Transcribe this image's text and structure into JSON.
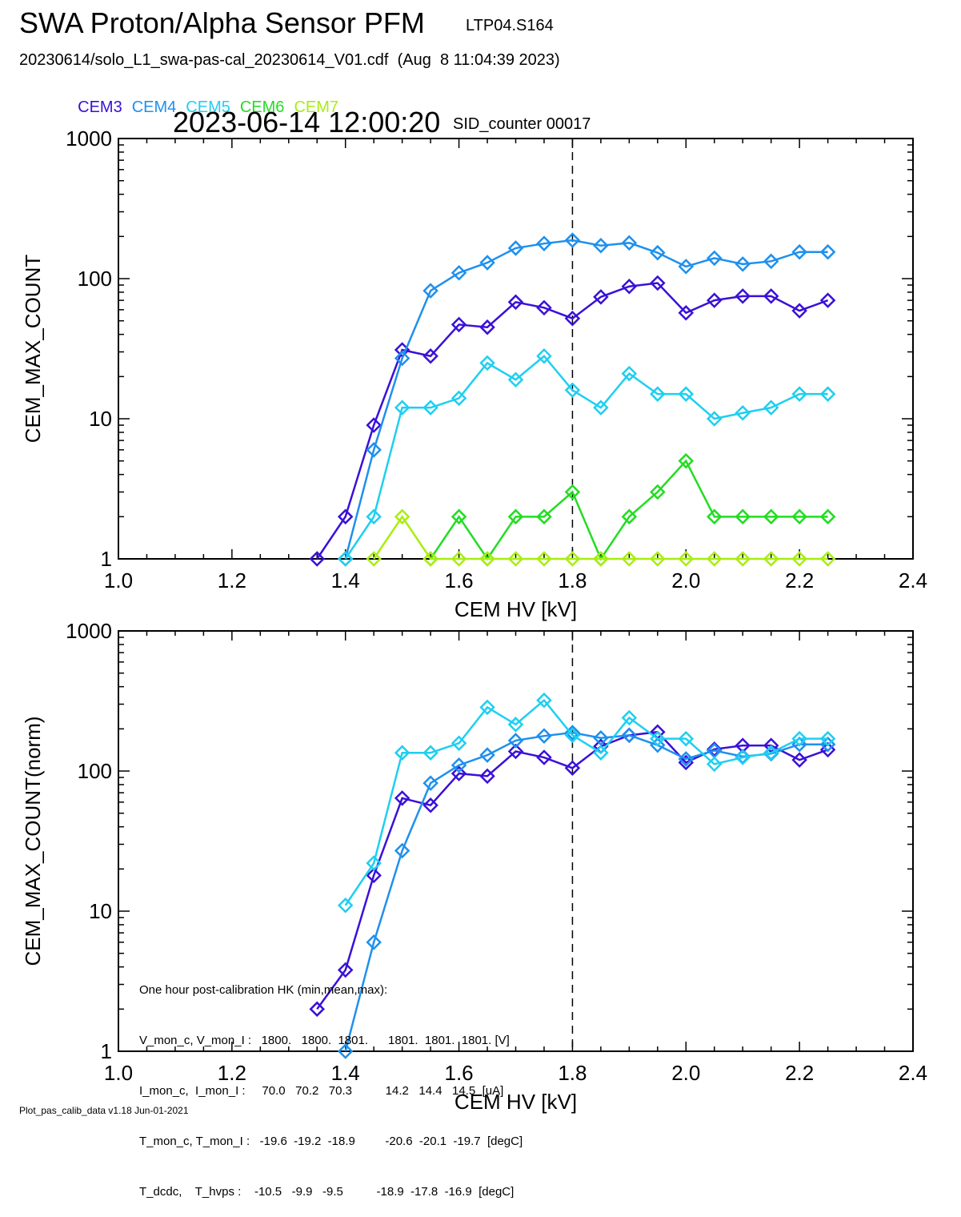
{
  "header": {
    "title": "SWA Proton/Alpha Sensor PFM",
    "subtitle": "LTP04.S164",
    "fileline": "20230614/solo_L1_swa-pas-cal_20230614_V01.cdf  (Aug  8 11:04:39 2023)",
    "timestamp": "2023-06-14 12:00:20",
    "sid": "SID_counter 00017"
  },
  "legend": [
    {
      "label": "CEM3",
      "color": "#3a10d8"
    },
    {
      "label": "CEM4",
      "color": "#1e90ee"
    },
    {
      "label": "CEM5",
      "color": "#1ecff0"
    },
    {
      "label": "CEM6",
      "color": "#22dd22"
    },
    {
      "label": "CEM7",
      "color": "#a8ee10"
    }
  ],
  "hk": {
    "title": "One hour post-calibration HK (min,mean,max):",
    "rows": [
      "V_mon_c, V_mon_I :   1800.   1800.  1801.      1801.  1801.  1801. [V]",
      "I_mon_c,  I_mon_I :     70.0   70.2   70.3          14.2   14.4   14.5  [uA]",
      "T_mon_c, T_mon_I :   -19.6  -19.2  -18.9         -20.6  -20.1  -19.7  [degC]",
      "T_dcdc,    T_hvps :    -10.5   -9.9   -9.5          -18.9  -17.8  -16.9  [degC]"
    ]
  },
  "footer": "Plot_pas_calib_data v1.18 Jun-01-2021",
  "chart_data": [
    {
      "type": "line",
      "title": "",
      "xlabel": "CEM HV [kV]",
      "ylabel": "CEM_MAX_COUNT",
      "xlim": [
        1.0,
        2.4
      ],
      "ylim": [
        1,
        1000
      ],
      "yscale": "log",
      "x_ticks": [
        "1.0",
        "1.2",
        "1.4",
        "1.6",
        "1.8",
        "2.0",
        "2.2",
        "2.4"
      ],
      "y_ticks": [
        "1",
        "10",
        "100",
        "1000"
      ],
      "vline_x": 1.8,
      "series": [
        {
          "name": "CEM3",
          "color": "#3a10d8",
          "points": [
            [
              1.35,
              1
            ],
            [
              1.4,
              2
            ],
            [
              1.45,
              9
            ],
            [
              1.5,
              31
            ],
            [
              1.55,
              28
            ],
            [
              1.6,
              47
            ],
            [
              1.65,
              45
            ],
            [
              1.7,
              68
            ],
            [
              1.75,
              62
            ],
            [
              1.8,
              52
            ],
            [
              1.85,
              74
            ],
            [
              1.9,
              88
            ],
            [
              1.95,
              93
            ],
            [
              2.0,
              57
            ],
            [
              2.05,
              70
            ],
            [
              2.1,
              75
            ],
            [
              2.15,
              75
            ],
            [
              2.2,
              59
            ],
            [
              2.25,
              70
            ]
          ]
        },
        {
          "name": "CEM4",
          "color": "#1e90ee",
          "points": [
            [
              1.4,
              1
            ],
            [
              1.45,
              6
            ],
            [
              1.5,
              27
            ],
            [
              1.55,
              82
            ],
            [
              1.6,
              110
            ],
            [
              1.65,
              130
            ],
            [
              1.7,
              165
            ],
            [
              1.75,
              178
            ],
            [
              1.8,
              188
            ],
            [
              1.85,
              172
            ],
            [
              1.9,
              180
            ],
            [
              1.95,
              153
            ],
            [
              2.0,
              122
            ],
            [
              2.05,
              140
            ],
            [
              2.1,
              127
            ],
            [
              2.15,
              133
            ],
            [
              2.2,
              155
            ],
            [
              2.25,
              155
            ]
          ]
        },
        {
          "name": "CEM5",
          "color": "#1ecff0",
          "points": [
            [
              1.4,
              1
            ],
            [
              1.45,
              2
            ],
            [
              1.5,
              12
            ],
            [
              1.55,
              12
            ],
            [
              1.6,
              14
            ],
            [
              1.65,
              25
            ],
            [
              1.7,
              19
            ],
            [
              1.75,
              28
            ],
            [
              1.8,
              16
            ],
            [
              1.85,
              12
            ],
            [
              1.9,
              21
            ],
            [
              1.95,
              15
            ],
            [
              2.0,
              15
            ],
            [
              2.05,
              10
            ],
            [
              2.1,
              11
            ],
            [
              2.15,
              12
            ],
            [
              2.2,
              15
            ],
            [
              2.25,
              15
            ]
          ]
        },
        {
          "name": "CEM6",
          "color": "#22dd22",
          "points": [
            [
              1.55,
              1
            ],
            [
              1.6,
              2
            ],
            [
              1.65,
              1
            ],
            [
              1.7,
              2
            ],
            [
              1.75,
              2
            ],
            [
              1.8,
              3
            ],
            [
              1.85,
              1
            ],
            [
              1.9,
              2
            ],
            [
              1.95,
              3
            ],
            [
              2.0,
              5
            ],
            [
              2.05,
              2
            ],
            [
              2.1,
              2
            ],
            [
              2.15,
              2
            ],
            [
              2.2,
              2
            ],
            [
              2.25,
              2
            ]
          ]
        },
        {
          "name": "CEM7",
          "color": "#a8ee10",
          "points": [
            [
              1.45,
              1
            ],
            [
              1.5,
              2
            ],
            [
              1.55,
              1
            ],
            [
              1.6,
              1
            ],
            [
              1.65,
              1
            ],
            [
              1.7,
              1
            ],
            [
              1.75,
              1
            ],
            [
              1.8,
              1
            ],
            [
              1.85,
              1
            ],
            [
              1.9,
              1
            ],
            [
              1.95,
              1
            ],
            [
              2.0,
              1
            ],
            [
              2.05,
              1
            ],
            [
              2.1,
              1
            ],
            [
              2.15,
              1
            ],
            [
              2.2,
              1
            ],
            [
              2.25,
              1
            ]
          ]
        }
      ]
    },
    {
      "type": "line",
      "title": "",
      "xlabel": "CEM HV [kV]",
      "ylabel": "CEM_MAX_COUNT(norm)",
      "xlim": [
        1.0,
        2.4
      ],
      "ylim": [
        1,
        1000
      ],
      "yscale": "log",
      "x_ticks": [
        "1.0",
        "1.2",
        "1.4",
        "1.6",
        "1.8",
        "2.0",
        "2.2",
        "2.4"
      ],
      "y_ticks": [
        "1",
        "10",
        "100",
        "1000"
      ],
      "vline_x": 1.8,
      "series": [
        {
          "name": "CEM3",
          "color": "#3a10d8",
          "points": [
            [
              1.35,
              2
            ],
            [
              1.4,
              3.8
            ],
            [
              1.45,
              18
            ],
            [
              1.5,
              64
            ],
            [
              1.55,
              57
            ],
            [
              1.6,
              96
            ],
            [
              1.65,
              92
            ],
            [
              1.7,
              138
            ],
            [
              1.75,
              125
            ],
            [
              1.8,
              105
            ],
            [
              1.85,
              150
            ],
            [
              1.9,
              180
            ],
            [
              1.95,
              190
            ],
            [
              2.0,
              115
            ],
            [
              2.05,
              143
            ],
            [
              2.1,
              152
            ],
            [
              2.15,
              152
            ],
            [
              2.2,
              120
            ],
            [
              2.25,
              142
            ]
          ]
        },
        {
          "name": "CEM4",
          "color": "#1e90ee",
          "points": [
            [
              1.4,
              1
            ],
            [
              1.45,
              6
            ],
            [
              1.5,
              27
            ],
            [
              1.55,
              82
            ],
            [
              1.6,
              110
            ],
            [
              1.65,
              130
            ],
            [
              1.7,
              165
            ],
            [
              1.75,
              178
            ],
            [
              1.8,
              188
            ],
            [
              1.85,
              172
            ],
            [
              1.9,
              180
            ],
            [
              1.95,
              153
            ],
            [
              2.0,
              122
            ],
            [
              2.05,
              140
            ],
            [
              2.1,
              127
            ],
            [
              2.15,
              133
            ],
            [
              2.2,
              155
            ],
            [
              2.25,
              155
            ]
          ]
        },
        {
          "name": "CEM5",
          "color": "#1ecff0",
          "points": [
            [
              1.4,
              11
            ],
            [
              1.45,
              22
            ],
            [
              1.5,
              135
            ],
            [
              1.55,
              135
            ],
            [
              1.6,
              158
            ],
            [
              1.65,
              285
            ],
            [
              1.7,
              215
            ],
            [
              1.75,
              320
            ],
            [
              1.8,
              180
            ],
            [
              1.85,
              135
            ],
            [
              1.9,
              240
            ],
            [
              1.95,
              170
            ],
            [
              2.0,
              170
            ],
            [
              2.05,
              112
            ],
            [
              2.1,
              125
            ],
            [
              2.15,
              135
            ],
            [
              2.2,
              170
            ],
            [
              2.25,
              170
            ]
          ]
        }
      ]
    }
  ]
}
